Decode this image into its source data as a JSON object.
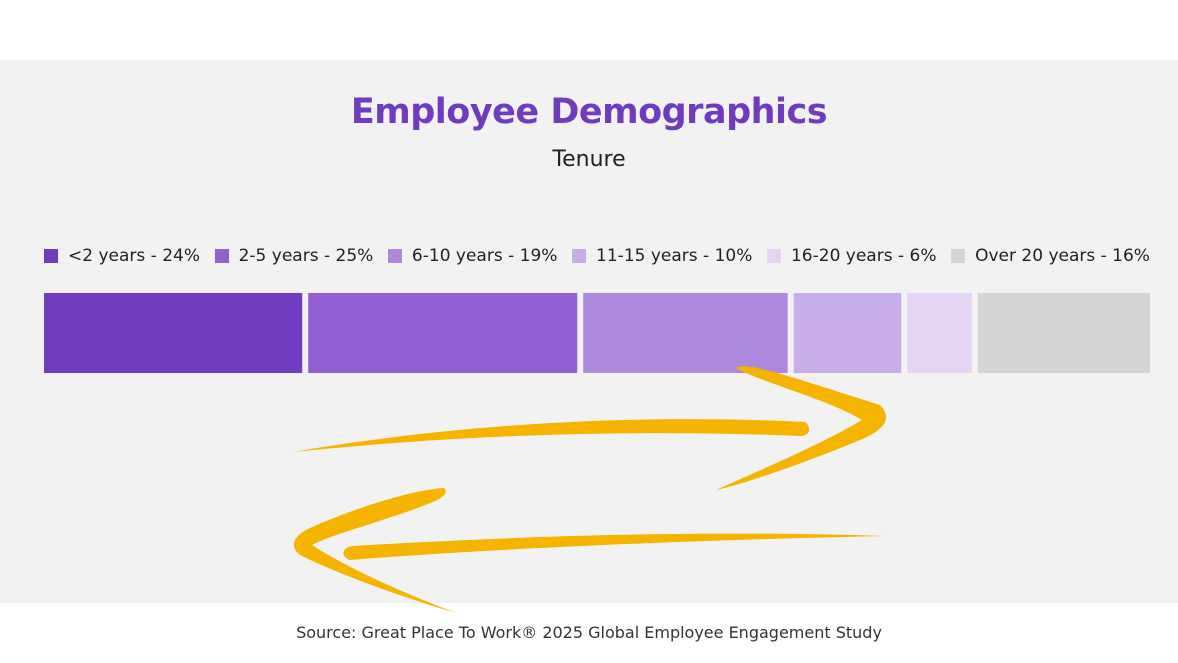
{
  "chart_data": {
    "type": "bar",
    "orientation": "horizontal-stacked-100",
    "title": "Employee Demographics",
    "subtitle": "Tenure",
    "categories": [
      "<2 years",
      "2-5 years",
      "6-10 years",
      "11-15 years",
      "16-20 years",
      "Over 20 years"
    ],
    "values": [
      24,
      25,
      19,
      10,
      6,
      16
    ],
    "unit": "%",
    "legend_labels": [
      "<2 years - 24%",
      "2-5 years - 25%",
      "6-10 years - 19%",
      "11-15 years - 10%",
      "16-20 years - 6%",
      "Over 20 years - 16%"
    ],
    "colors": [
      "#6f3cc0",
      "#915fd3",
      "#ad88df",
      "#c7aee9",
      "#e4d6f3",
      "#d4d4d4"
    ],
    "legend_position": "top",
    "annotation_color": "#f5b400",
    "annotation": "yellow hand-drawn arrows pointing right and left",
    "source": "Source: Great Place To Work® 2025 Global Employee Engagement Study"
  }
}
